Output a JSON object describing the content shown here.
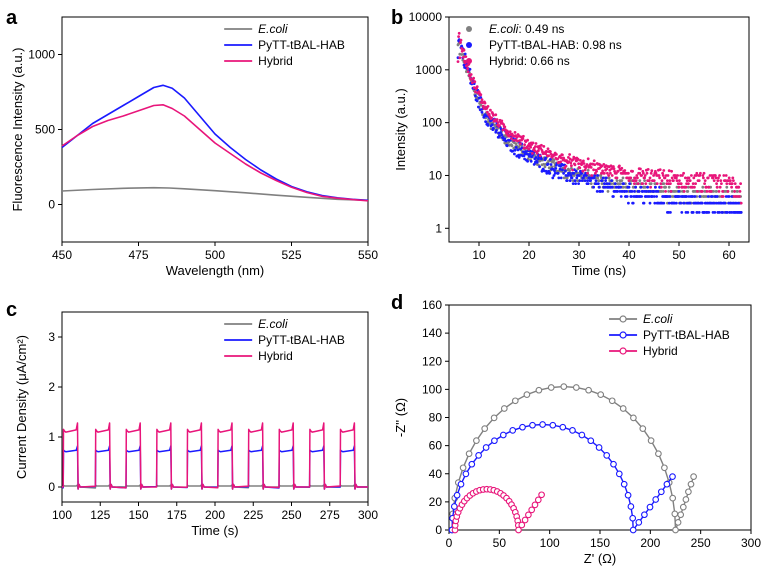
{
  "chart_data": [
    {
      "id": "a",
      "panel_label": "a",
      "type": "line",
      "xlabel": "Wavelength (nm)",
      "ylabel": "Fluorescence Intensity (a.u.)",
      "xlim": [
        450,
        550
      ],
      "ylim": [
        -250,
        1250
      ],
      "xticks": [
        450,
        475,
        500,
        525,
        550
      ],
      "yticks": [
        0,
        500,
        1000
      ],
      "legend": "top-right",
      "series": [
        {
          "name": "E.coli",
          "italic": true,
          "color": "#808080",
          "x": [
            450,
            460,
            470,
            480,
            485,
            490,
            500,
            510,
            520,
            530,
            540,
            550
          ],
          "y": [
            90,
            100,
            108,
            112,
            110,
            105,
            92,
            78,
            62,
            48,
            35,
            28
          ]
        },
        {
          "name": "PyTT-tBAL-HAB",
          "italic": false,
          "color": "#1a1aff",
          "x": [
            450,
            455,
            460,
            465,
            470,
            475,
            480,
            483,
            486,
            490,
            495,
            500,
            505,
            510,
            515,
            520,
            525,
            530,
            535,
            540,
            545,
            550
          ],
          "y": [
            380,
            460,
            540,
            600,
            660,
            720,
            780,
            795,
            775,
            710,
            590,
            470,
            380,
            300,
            230,
            170,
            120,
            85,
            60,
            45,
            35,
            28
          ]
        },
        {
          "name": "Hybrid",
          "italic": false,
          "color": "#e8157a",
          "x": [
            450,
            455,
            460,
            465,
            470,
            475,
            480,
            483,
            486,
            490,
            495,
            500,
            505,
            510,
            515,
            520,
            525,
            530,
            535,
            540,
            545,
            550
          ],
          "y": [
            390,
            460,
            520,
            560,
            590,
            625,
            660,
            665,
            640,
            590,
            500,
            410,
            340,
            270,
            210,
            160,
            115,
            80,
            55,
            42,
            33,
            25
          ]
        }
      ]
    },
    {
      "id": "b",
      "panel_label": "b",
      "type": "scatter",
      "xlabel": "Time (ns)",
      "ylabel": "Intensity (a.u.)",
      "xlim": [
        4,
        64
      ],
      "ylim": [
        0.55,
        10000
      ],
      "yscale": "log",
      "xticks": [
        10,
        20,
        30,
        40,
        50,
        60
      ],
      "yticks": [
        1,
        10,
        100,
        1000,
        10000
      ],
      "legend": "top-right",
      "t0": 5.8,
      "series": [
        {
          "name": "E.coli",
          "italic": true,
          "suffix": ": 0.49 ns",
          "lifetime_ns": 0.49,
          "color": "#808080",
          "amp": 4200,
          "floor": 2,
          "noise": 0.55
        },
        {
          "name": "PyTT-tBAL-HAB",
          "italic": false,
          "suffix": ": 0.98 ns",
          "lifetime_ns": 0.98,
          "color": "#1a1aff",
          "amp": 4800,
          "floor": 1,
          "noise": 0.75
        },
        {
          "name": "Hybrid",
          "italic": false,
          "suffix": ": 0.66 ns",
          "lifetime_ns": 0.66,
          "color": "#e8157a",
          "amp": 5000,
          "floor": 4,
          "noise": 0.45
        }
      ]
    },
    {
      "id": "c",
      "panel_label": "c",
      "type": "line",
      "xlabel": "Time (s)",
      "ylabel": "Current Density (μA/cm²)",
      "xlim": [
        100,
        300
      ],
      "ylim": [
        -0.3,
        3.5
      ],
      "xticks": [
        100,
        125,
        150,
        175,
        200,
        225,
        250,
        275,
        300
      ],
      "yticks": [
        0,
        1,
        2,
        3
      ],
      "legend": "top-right",
      "pulse_on_times": [
        101,
        122,
        142,
        162,
        182,
        202,
        222,
        242,
        262,
        282
      ],
      "pulse_width_s": 9.5,
      "series": [
        {
          "name": "E.coli",
          "italic": true,
          "color": "#808080",
          "base": 0.0,
          "level": 0.02,
          "peak": 0.04
        },
        {
          "name": "PyTT-tBAL-HAB",
          "italic": false,
          "color": "#1a1aff",
          "base": 0.0,
          "level": 0.72,
          "peak": 0.82
        },
        {
          "name": "Hybrid",
          "italic": false,
          "color": "#e8157a",
          "base": 0.0,
          "level": 1.12,
          "peak": 1.28
        }
      ]
    },
    {
      "id": "d",
      "panel_label": "d",
      "type": "line",
      "xlabel": "Z' (Ω)",
      "ylabel": "-Z'' (Ω)",
      "xlim": [
        0,
        300
      ],
      "ylim": [
        0,
        160
      ],
      "xticks": [
        0,
        50,
        100,
        150,
        200,
        250,
        300
      ],
      "yticks": [
        0,
        20,
        40,
        60,
        80,
        100,
        120,
        140,
        160
      ],
      "legend": "top-right",
      "markers": "open-circle",
      "series": [
        {
          "name": "E.coli",
          "italic": true,
          "color": "#808080",
          "arc_start": 3,
          "arc_end": 225,
          "arc_height": 102,
          "tail_end": [
            243,
            38
          ]
        },
        {
          "name": "PyTT-tBAL-HAB",
          "italic": false,
          "color": "#1a1aff",
          "arc_start": 3,
          "arc_end": 183,
          "arc_height": 75,
          "tail_end": [
            222,
            38
          ]
        },
        {
          "name": "Hybrid",
          "italic": false,
          "color": "#e8157a",
          "arc_start": 6,
          "arc_end": 69,
          "arc_height": 29,
          "tail_end": [
            92,
            25
          ]
        }
      ]
    }
  ]
}
